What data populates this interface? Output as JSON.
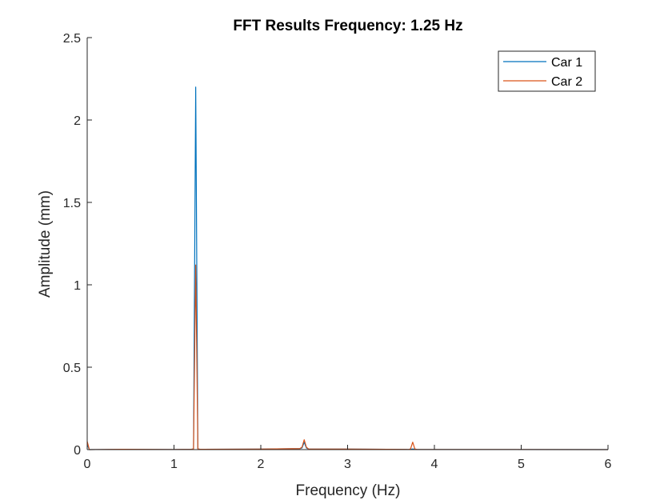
{
  "chart_data": {
    "type": "line",
    "title": "FFT Results Frequency: 1.25 Hz",
    "xlabel": "Frequency (Hz)",
    "ylabel": "Amplitude (mm)",
    "xlim": [
      0,
      6
    ],
    "ylim": [
      0,
      2.5
    ],
    "xticks": [
      0,
      1,
      2,
      3,
      4,
      5,
      6
    ],
    "yticks": [
      0,
      0.5,
      1,
      1.5,
      2,
      2.5
    ],
    "xtick_labels": [
      "0",
      "1",
      "2",
      "3",
      "4",
      "5",
      "6"
    ],
    "ytick_labels": [
      "0",
      "0.5",
      "1",
      "1.5",
      "2",
      "2.5"
    ],
    "grid": false,
    "legend_position": "top-right",
    "series": [
      {
        "name": "Car 1",
        "color": "#0072BD",
        "x": [
          0,
          0.025,
          0.4,
          1.0,
          1.2,
          1.225,
          1.25,
          1.275,
          1.3,
          2.0,
          2.45,
          2.475,
          2.5,
          2.525,
          2.55,
          3.0,
          3.7,
          3.725,
          3.75,
          3.775,
          3.8,
          6.0
        ],
        "y": [
          0.03,
          0.0,
          0.002,
          0.001,
          0.002,
          0.004,
          2.2,
          0.004,
          0.002,
          0.003,
          0.006,
          0.01,
          0.045,
          0.01,
          0.004,
          0.003,
          0.001,
          0.002,
          0.004,
          0.002,
          0.001,
          0.0
        ]
      },
      {
        "name": "Car 2",
        "color": "#D95319",
        "x": [
          0,
          0.025,
          0.4,
          1.0,
          1.2,
          1.225,
          1.25,
          1.275,
          1.3,
          2.0,
          2.45,
          2.475,
          2.5,
          2.525,
          2.55,
          3.0,
          3.7,
          3.725,
          3.75,
          3.775,
          3.8,
          6.0
        ],
        "y": [
          0.05,
          0.0,
          0.002,
          0.001,
          0.002,
          0.004,
          1.12,
          0.004,
          0.002,
          0.003,
          0.006,
          0.015,
          0.06,
          0.015,
          0.004,
          0.003,
          0.001,
          0.004,
          0.045,
          0.004,
          0.001,
          0.0
        ]
      }
    ]
  }
}
